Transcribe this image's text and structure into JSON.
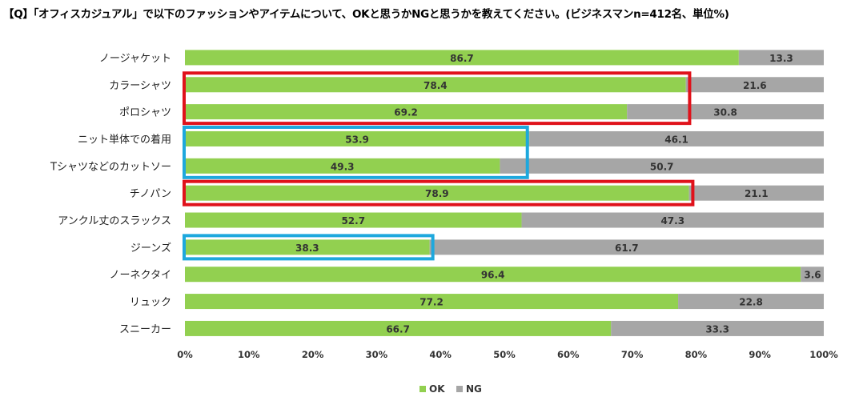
{
  "chart_data": {
    "type": "bar",
    "orientation": "horizontal",
    "stacked": true,
    "title": "【Q】「オフィスカジュアル」で以下のファッションやアイテムについて、OKと思うかNGと思うかを教えてください。(ビジネスマンn=412名、単位%)",
    "categories": [
      "ノージャケット",
      "カラーシャツ",
      "ポロシャツ",
      "ニット単体での着用",
      "Tシャツなどのカットソー",
      "チノパン",
      "アンクル丈のスラックス",
      "ジーンズ",
      "ノーネクタイ",
      "リュック",
      "スニーカー"
    ],
    "series": [
      {
        "name": "OK",
        "color": "#92d050",
        "values": [
          86.7,
          78.4,
          69.2,
          53.9,
          49.3,
          78.9,
          52.7,
          38.3,
          96.4,
          77.2,
          66.7
        ]
      },
      {
        "name": "NG",
        "color": "#a6a6a6",
        "values": [
          13.3,
          21.6,
          30.8,
          46.1,
          50.7,
          21.1,
          47.3,
          61.7,
          3.6,
          22.8,
          33.3
        ]
      }
    ],
    "xlim": [
      0,
      100
    ],
    "xticks": [
      "0%",
      "10%",
      "20%",
      "30%",
      "40%",
      "50%",
      "60%",
      "70%",
      "80%",
      "90%",
      "100%"
    ],
    "legend": [
      "OK",
      "NG"
    ],
    "legend_position": "bottom",
    "highlights": [
      {
        "color": "#e0121b",
        "categories": [
          "カラーシャツ",
          "ポロシャツ"
        ],
        "extent": 79
      },
      {
        "color": "#1ea8dd",
        "categories": [
          "ニット単体での着用",
          "Tシャツなどのカットソー"
        ],
        "extent": 53.6
      },
      {
        "color": "#e0121b",
        "categories": [
          "チノパン"
        ],
        "extent": 79.5
      },
      {
        "color": "#1ea8dd",
        "categories": [
          "ジーンズ"
        ],
        "extent": 38.8
      }
    ]
  }
}
